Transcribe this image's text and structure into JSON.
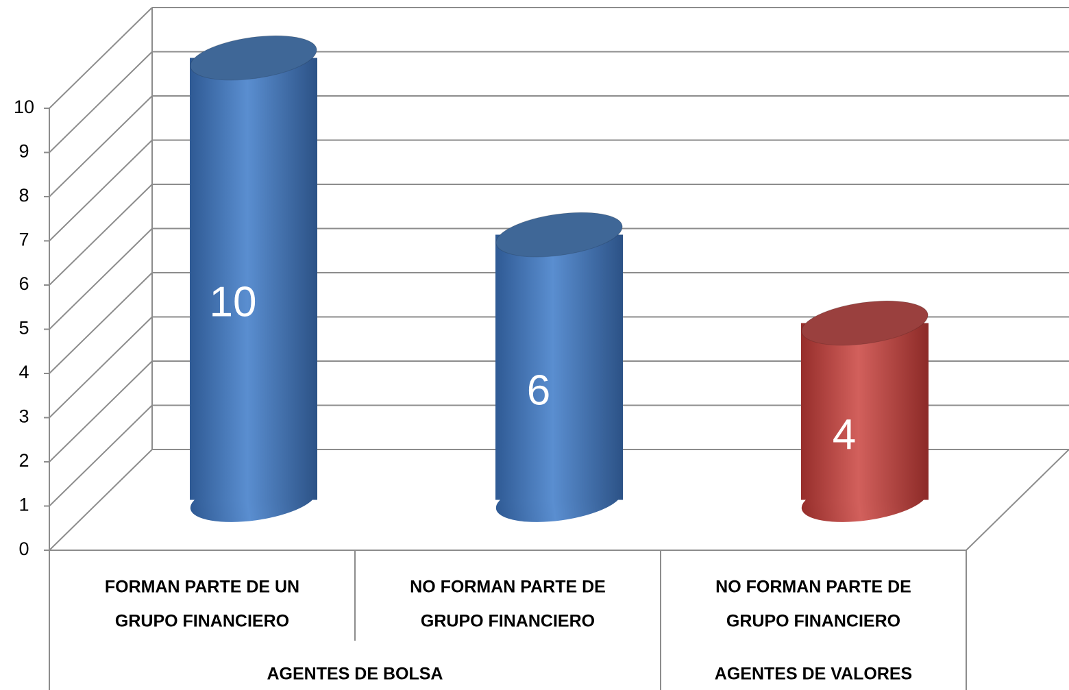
{
  "chart_data": {
    "type": "bar3d",
    "categories": [
      [
        "FORMAN PARTE DE UN",
        "GRUPO FINANCIERO"
      ],
      [
        "NO FORMAN PARTE DE",
        "GRUPO FINANCIERO"
      ],
      [
        "NO FORMAN PARTE DE",
        "GRUPO FINANCIERO"
      ]
    ],
    "groups": [
      "AGENTES DE BOLSA",
      "AGENTES DE BOLSA",
      "AGENTES DE VALORES"
    ],
    "values": [
      10,
      6,
      4
    ],
    "colors": [
      "#4f81bd",
      "#4f81bd",
      "#c0504d"
    ],
    "ylim": [
      0,
      10
    ],
    "yticks": [
      0,
      1,
      2,
      3,
      4,
      5,
      6,
      7,
      8,
      9,
      10
    ],
    "grid": true
  }
}
